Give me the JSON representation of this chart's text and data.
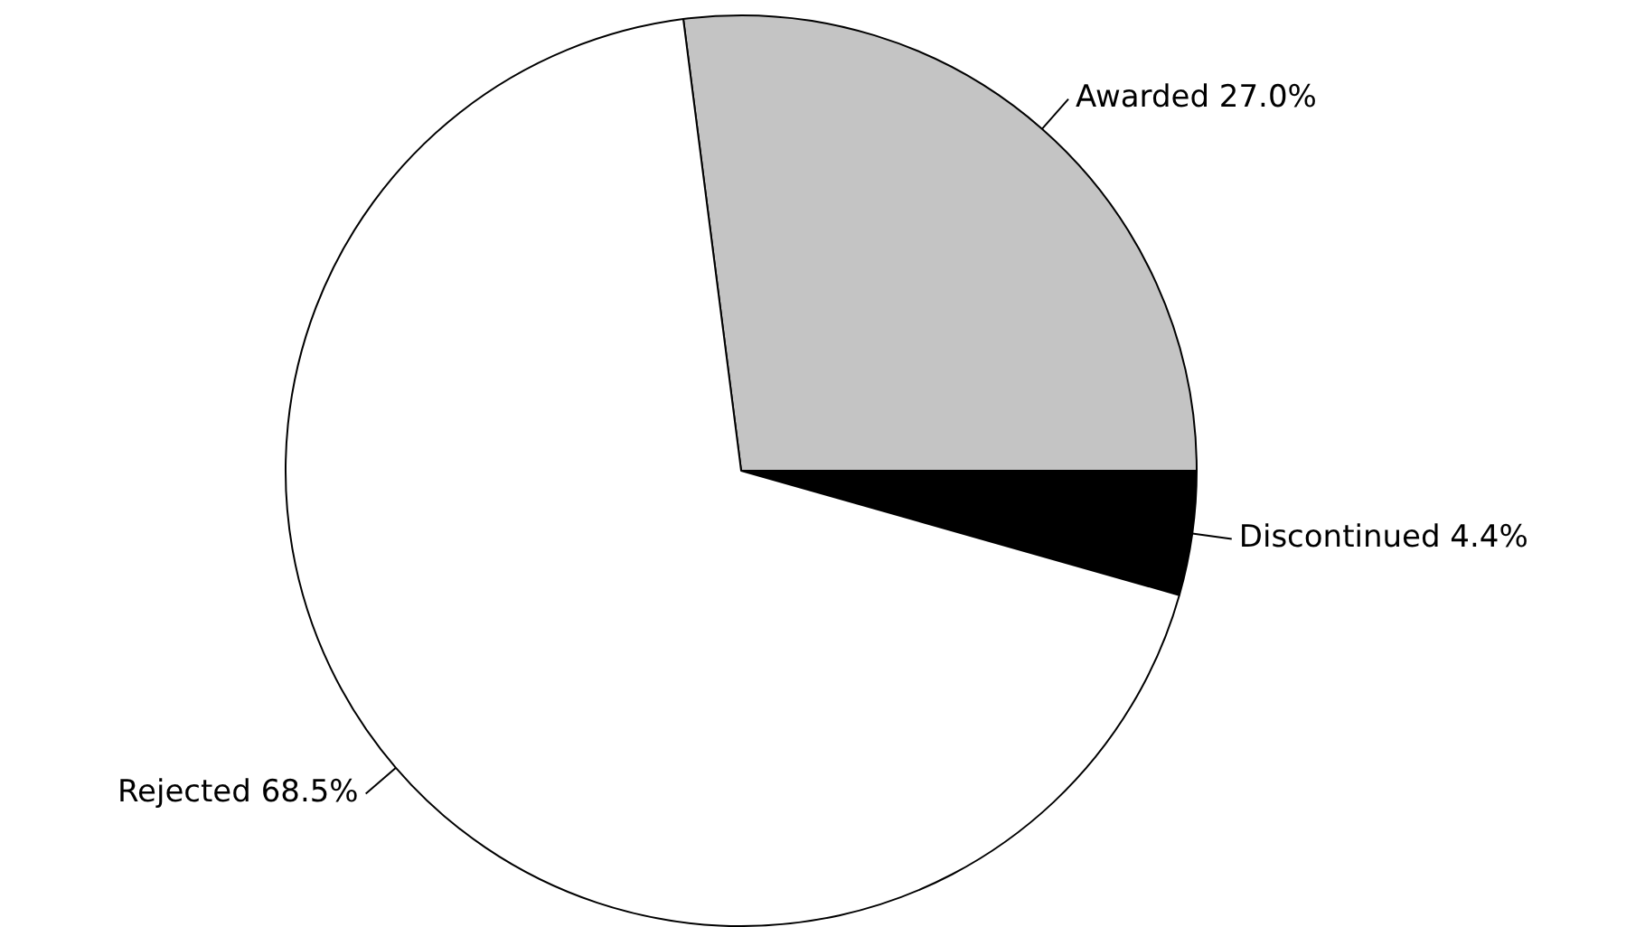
{
  "chart_data": {
    "type": "pie",
    "categories": [
      "Awarded",
      "Discontinued",
      "Rejected"
    ],
    "values": [
      27.0,
      4.4,
      68.5
    ],
    "colors": [
      "#c4c4c4",
      "#000000",
      "#ffffff"
    ],
    "value_labels": [
      "27.0%",
      "4.4%",
      "68.5%"
    ],
    "legend": false
  }
}
